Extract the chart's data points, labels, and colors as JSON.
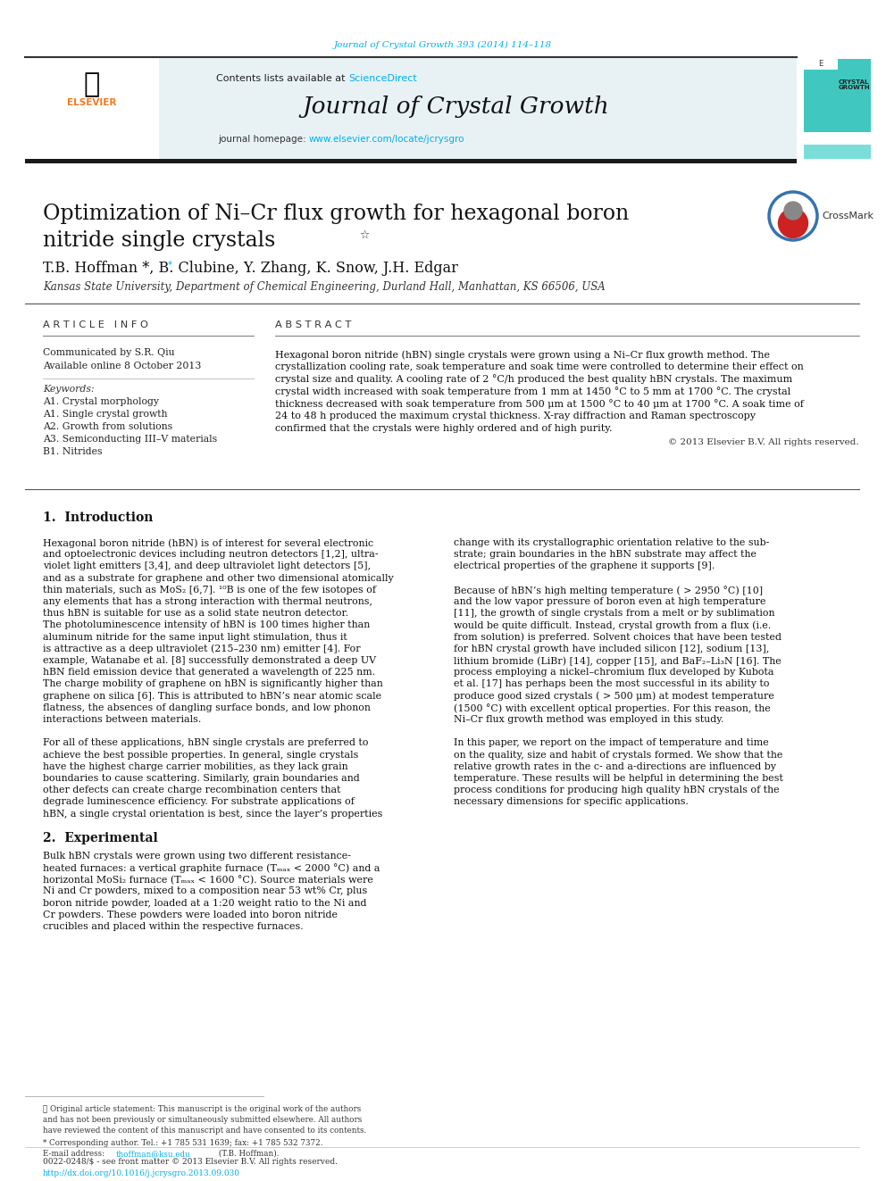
{
  "page_width": 9.92,
  "page_height": 13.23,
  "bg_color": "#ffffff",
  "header_citation": "Journal of Crystal Growth 393 (2014) 114–118",
  "header_citation_color": "#00AEEF",
  "journal_name": "Journal of Crystal Growth",
  "contents_text": "Contents lists available at ",
  "science_direct": "ScienceDirect",
  "journal_homepage_text": "journal homepage: ",
  "journal_url": "www.elsevier.com/locate/jcrysgro",
  "teal_bar_color": "#40C8C0",
  "article_title": "Optimization of Ni–Cr flux growth for hexagonal boron\nnitride single crystals",
  "title_star": "☆",
  "authors": "T.B. Hoffman *, B. Clubine, Y. Zhang, K. Snow, J.H. Edgar",
  "affiliation": "Kansas State University, Department of Chemical Engineering, Durland Hall, Manhattan, KS 66506, USA",
  "article_info_header": "A R T I C L E   I N F O",
  "abstract_header": "A B S T R A C T",
  "communicated": "Communicated by S.R. Qiu",
  "available": "Available online 8 October 2013",
  "keywords_label": "Keywords:",
  "keywords": [
    "A1. Crystal morphology",
    "A1. Single crystal growth",
    "A2. Growth from solutions",
    "A3. Semiconducting III–V materials",
    "B1. Nitrides"
  ],
  "abstract_lines": [
    "Hexagonal boron nitride (hBN) single crystals were grown using a Ni–Cr flux growth method. The",
    "crystallization cooling rate, soak temperature and soak time were controlled to determine their effect on",
    "crystal size and quality. A cooling rate of 2 °C/h produced the best quality hBN crystals. The maximum",
    "crystal width increased with soak temperature from 1 mm at 1450 °C to 5 mm at 1700 °C. The crystal",
    "thickness decreased with soak temperature from 500 μm at 1500 °C to 40 μm at 1700 °C. A soak time of",
    "24 to 48 h produced the maximum crystal thickness. X-ray diffraction and Raman spectroscopy",
    "confirmed that the crystals were highly ordered and of high purity."
  ],
  "copyright": "© 2013 Elsevier B.V. All rights reserved.",
  "section1_title": "1.  Introduction",
  "intro_col1_lines": [
    "Hexagonal boron nitride (hBN) is of interest for several electronic",
    "and optoelectronic devices including neutron detectors [1,2], ultra-",
    "violet light emitters [3,4], and deep ultraviolet light detectors [5],",
    "and as a substrate for graphene and other two dimensional atomically",
    "thin materials, such as MoS₂ [6,7]. ¹⁰B is one of the few isotopes of",
    "any elements that has a strong interaction with thermal neutrons,",
    "thus hBN is suitable for use as a solid state neutron detector.",
    "The photoluminescence intensity of hBN is 100 times higher than",
    "aluminum nitride for the same input light stimulation, thus it",
    "is attractive as a deep ultraviolet (215–230 nm) emitter [4]. For",
    "example, Watanabe et al. [8] successfully demonstrated a deep UV",
    "hBN field emission device that generated a wavelength of 225 nm.",
    "The charge mobility of graphene on hBN is significantly higher than",
    "graphene on silica [6]. This is attributed to hBN’s near atomic scale",
    "flatness, the absences of dangling surface bonds, and low phonon",
    "interactions between materials.",
    "",
    "For all of these applications, hBN single crystals are preferred to",
    "achieve the best possible properties. In general, single crystals",
    "have the highest charge carrier mobilities, as they lack grain",
    "boundaries to cause scattering. Similarly, grain boundaries and",
    "other defects can create charge recombination centers that",
    "degrade luminescence efficiency. For substrate applications of",
    "hBN, a single crystal orientation is best, since the layer’s properties"
  ],
  "intro_col2_lines": [
    "change with its crystallographic orientation relative to the sub-",
    "strate; grain boundaries in the hBN substrate may affect the",
    "electrical properties of the graphene it supports [9].",
    "",
    "Because of hBN’s high melting temperature ( > 2950 °C) [10]",
    "and the low vapor pressure of boron even at high temperature",
    "[11], the growth of single crystals from a melt or by sublimation",
    "would be quite difficult. Instead, crystal growth from a flux (i.e.",
    "from solution) is preferred. Solvent choices that have been tested",
    "for hBN crystal growth have included silicon [12], sodium [13],",
    "lithium bromide (LiBr) [14], copper [15], and BaF₂–Li₃N [16]. The",
    "process employing a nickel–chromium flux developed by Kubota",
    "et al. [17] has perhaps been the most successful in its ability to",
    "produce good sized crystals ( > 500 μm) at modest temperature",
    "(1500 °C) with excellent optical properties. For this reason, the",
    "Ni–Cr flux growth method was employed in this study.",
    "",
    "In this paper, we report on the impact of temperature and time",
    "on the quality, size and habit of crystals formed. We show that the",
    "relative growth rates in the c- and a-directions are influenced by",
    "temperature. These results will be helpful in determining the best",
    "process conditions for producing high quality hBN crystals of the",
    "necessary dimensions for specific applications."
  ],
  "section2_title": "2.  Experimental",
  "exp_col1_lines": [
    "Bulk hBN crystals were grown using two different resistance-",
    "heated furnaces: a vertical graphite furnace (Tₘₐₓ < 2000 °C) and a",
    "horizontal MoSi₂ furnace (Tₘₐₓ < 1600 °C). Source materials were",
    "Ni and Cr powders, mixed to a composition near 53 wt% Cr, plus",
    "boron nitride powder, loaded at a 1:20 weight ratio to the Ni and",
    "Cr powders. These powders were loaded into boron nitride",
    "crucibles and placed within the respective furnaces."
  ],
  "footnote_star_text": "★ Original article statement: This manuscript is the original work of the authors",
  "footnote_star_text2": "and has not been previously or simultaneously submitted elsewhere. All authors",
  "footnote_star_text3": "have reviewed the content of this manuscript and have consented to its contents.",
  "footnote_corresponding": "* Corresponding author. Tel.: +1 785 531 1639; fax: +1 785 532 7372.",
  "footnote_email_prefix": "E-mail address: ",
  "footnote_email_link": "thoffman@ksu.edu",
  "footnote_email_suffix": " (T.B. Hoffman).",
  "footer_issn": "0022-0248/$ - see front matter © 2013 Elsevier B.V. All rights reserved.",
  "footer_doi": "http://dx.doi.org/10.1016/j.jcrysgro.2013.09.030",
  "link_color": "#00AEEF",
  "elsevier_orange": "#F47920"
}
